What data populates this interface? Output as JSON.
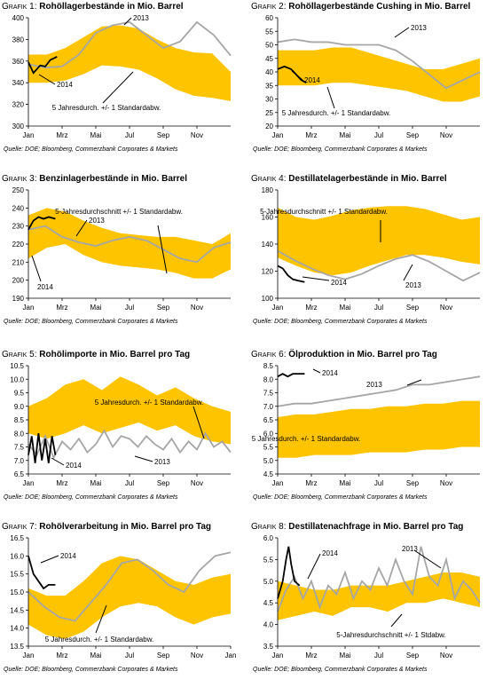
{
  "months": [
    "Jan",
    "Mrz",
    "Mai",
    "Jul",
    "Sep",
    "Nov"
  ],
  "source": "Quelle: DOE; Bloomberg, Commerzbank Corporates & Markets",
  "colors": {
    "band": "#ffc400",
    "line2013": "#a6a6a6",
    "line2014": "#000000"
  },
  "chart_data": [
    {
      "type": "line",
      "grafik": "Grafik 1:",
      "title": "Rohöllagerbestände in Mio. Barrel",
      "yticks": [
        "300",
        "320",
        "340",
        "360",
        "380",
        "400"
      ],
      "ylim": [
        300,
        400
      ],
      "annotations": [
        {
          "text": "2013"
        },
        {
          "text": "2014"
        },
        {
          "text": "5 Jahresdurch. +/- 1 Standardabw."
        }
      ],
      "band_upper": [
        366,
        366,
        372,
        382,
        392,
        393,
        390,
        380,
        372,
        368,
        367,
        350
      ],
      "band_lower": [
        340,
        340,
        342,
        348,
        356,
        355,
        352,
        344,
        334,
        328,
        326,
        323
      ],
      "series_2013": [
        357,
        354,
        355,
        366,
        386,
        393,
        396,
        384,
        372,
        378,
        396,
        384,
        365
      ],
      "series_2014": [
        {
          "x": 0.0,
          "y": 359
        },
        {
          "x": 0.3,
          "y": 349
        },
        {
          "x": 0.7,
          "y": 356
        },
        {
          "x": 1.0,
          "y": 355
        },
        {
          "x": 1.3,
          "y": 361
        },
        {
          "x": 1.7,
          "y": 364
        }
      ]
    },
    {
      "type": "line",
      "grafik": "Grafik 2:",
      "title": "Rohöllagerbestände Cushing in Mio. Barrel",
      "yticks": [
        "20",
        "25",
        "30",
        "35",
        "40",
        "45",
        "50",
        "55",
        "60"
      ],
      "ylim": [
        20,
        60
      ],
      "annotations": [
        {
          "text": "2013"
        },
        {
          "text": "2014"
        },
        {
          "text": "5 Jahresdurch. +/- 1 Standardabw."
        }
      ],
      "band_upper": [
        48,
        48,
        48,
        49,
        49,
        47,
        45,
        43,
        41,
        41,
        43,
        45
      ],
      "band_lower": [
        35,
        35,
        35,
        36,
        36,
        35,
        34,
        33,
        31,
        29,
        29,
        31
      ],
      "series_2013": [
        51,
        52,
        51,
        51,
        50,
        50,
        50,
        48,
        44,
        39,
        34,
        37,
        40
      ],
      "series_2014": [
        {
          "x": 0.0,
          "y": 41
        },
        {
          "x": 0.4,
          "y": 42
        },
        {
          "x": 0.8,
          "y": 41
        },
        {
          "x": 1.1,
          "y": 39
        },
        {
          "x": 1.4,
          "y": 37
        },
        {
          "x": 1.7,
          "y": 36
        }
      ]
    },
    {
      "type": "line",
      "grafik": "Grafik 3:",
      "title": "Benzinlagerbestände in Mio. Barrel",
      "yticks": [
        "190",
        "200",
        "210",
        "220",
        "230",
        "240",
        "250"
      ],
      "ylim": [
        190,
        250
      ],
      "annotations": [
        {
          "text": "2013"
        },
        {
          "text": "2014"
        },
        {
          "text": "5-Jahresdurchschnitt +/- 1 Standardabw."
        }
      ],
      "band_upper": [
        236,
        240,
        238,
        233,
        229,
        226,
        225,
        224,
        224,
        222,
        220,
        226
      ],
      "band_lower": [
        212,
        218,
        220,
        214,
        210,
        208,
        207,
        206,
        204,
        201,
        201,
        206
      ],
      "series_2013": [
        228,
        230,
        224,
        221,
        219,
        222,
        224,
        222,
        217,
        212,
        210,
        218,
        221
      ],
      "series_2014": [
        {
          "x": 0.0,
          "y": 228
        },
        {
          "x": 0.3,
          "y": 233
        },
        {
          "x": 0.6,
          "y": 235
        },
        {
          "x": 0.9,
          "y": 234
        },
        {
          "x": 1.2,
          "y": 235
        },
        {
          "x": 1.6,
          "y": 234
        }
      ]
    },
    {
      "type": "line",
      "grafik": "Grafik 4:",
      "title": "Destillatelagerbestände in Mio. Barrel",
      "yticks": [
        "100",
        "120",
        "140",
        "160",
        "180"
      ],
      "ylim": [
        100,
        180
      ],
      "annotations": [
        {
          "text": "5-Jahresdurchschnitt +/- 1 Standardabw."
        },
        {
          "text": "2014"
        },
        {
          "text": "2013"
        }
      ],
      "band_upper": [
        167,
        160,
        158,
        161,
        165,
        167,
        168,
        168,
        166,
        162,
        158,
        160
      ],
      "band_lower": [
        130,
        124,
        119,
        117,
        119,
        124,
        128,
        132,
        132,
        130,
        127,
        125
      ],
      "series_2013": [
        135,
        128,
        122,
        117,
        114,
        118,
        124,
        129,
        132,
        127,
        120,
        113,
        119
      ],
      "series_2014": [
        {
          "x": 0.0,
          "y": 124
        },
        {
          "x": 0.3,
          "y": 122
        },
        {
          "x": 0.6,
          "y": 117
        },
        {
          "x": 0.9,
          "y": 114
        },
        {
          "x": 1.2,
          "y": 113
        },
        {
          "x": 1.6,
          "y": 112
        }
      ]
    },
    {
      "type": "line",
      "grafik": "Grafik 5:",
      "title": "Rohölimporte in Mio. Barrel pro Tag",
      "yticks": [
        "6.5",
        "7.0",
        "7.5",
        "8.0",
        "8.5",
        "9.0",
        "9.5",
        "10.0",
        "10.5"
      ],
      "ylim": [
        6.5,
        10.5
      ],
      "annotations": [
        {
          "text": "5 Jahresdurch. +/- 1 Standardabw."
        },
        {
          "text": "2014"
        },
        {
          "text": "2013"
        }
      ],
      "band_upper": [
        9.0,
        9.3,
        9.8,
        10.0,
        9.6,
        10.1,
        9.8,
        9.4,
        9.7,
        9.3,
        9.0,
        8.8
      ],
      "band_lower": [
        8.0,
        7.8,
        8.0,
        8.3,
        8.0,
        8.2,
        8.4,
        8.1,
        8.3,
        7.9,
        7.7,
        7.6
      ],
      "series_2013": [
        7.6,
        7.2,
        7.9,
        7.1,
        7.7,
        7.4,
        7.8,
        7.3,
        7.6,
        8.1,
        7.5,
        7.9,
        7.8,
        7.5,
        7.9,
        7.6,
        7.4,
        7.8,
        7.3,
        7.7,
        7.4,
        8.0,
        7.5,
        7.7,
        7.3
      ],
      "series_2014": [
        {
          "x": 0.0,
          "y": 7.2
        },
        {
          "x": 0.2,
          "y": 7.9
        },
        {
          "x": 0.4,
          "y": 6.9
        },
        {
          "x": 0.6,
          "y": 8.0
        },
        {
          "x": 0.8,
          "y": 7.0
        },
        {
          "x": 1.0,
          "y": 7.8
        },
        {
          "x": 1.2,
          "y": 6.9
        },
        {
          "x": 1.4,
          "y": 7.9
        },
        {
          "x": 1.6,
          "y": 7.2
        }
      ]
    },
    {
      "type": "line",
      "grafik": "Grafik 6:",
      "title": "Ölproduktion in Mio. Barrel pro Tag",
      "yticks": [
        "4.5",
        "5.0",
        "5.5",
        "6.0",
        "6.5",
        "7.0",
        "7.5",
        "8.0",
        "8.5"
      ],
      "ylim": [
        4.5,
        8.5
      ],
      "annotations": [
        {
          "text": "2014"
        },
        {
          "text": "2013"
        },
        {
          "text": "5 Jahresdurch. +/- 1 Standardabw."
        }
      ],
      "band_upper": [
        6.6,
        6.7,
        6.7,
        6.8,
        6.9,
        6.9,
        7.0,
        7.0,
        7.1,
        7.1,
        7.2,
        7.2
      ],
      "band_lower": [
        5.1,
        5.1,
        5.2,
        5.2,
        5.2,
        5.3,
        5.3,
        5.3,
        5.4,
        5.4,
        5.5,
        5.5
      ],
      "series_2013": [
        7.0,
        7.1,
        7.1,
        7.2,
        7.3,
        7.4,
        7.5,
        7.6,
        7.8,
        7.8,
        7.9,
        8.0,
        8.1
      ],
      "series_2014": [
        {
          "x": 0.0,
          "y": 8.1
        },
        {
          "x": 0.3,
          "y": 8.2
        },
        {
          "x": 0.6,
          "y": 8.1
        },
        {
          "x": 0.9,
          "y": 8.2
        },
        {
          "x": 1.2,
          "y": 8.2
        },
        {
          "x": 1.6,
          "y": 8.2
        }
      ]
    },
    {
      "type": "line",
      "grafik": "Grafik 7:",
      "title": "Rohölverarbeitung in Mio. Barrel pro Tag",
      "yticks": [
        "13.5",
        "14.0",
        "14.5",
        "15.0",
        "15.5",
        "16.0",
        "16.5"
      ],
      "ylim": [
        13.5,
        16.5
      ],
      "annotations": [
        {
          "text": "2014"
        },
        {
          "text": "5 Jahresdurch. +/- 1 Standardabw."
        }
      ],
      "band_upper": [
        15.1,
        14.9,
        14.9,
        15.3,
        15.8,
        16.0,
        15.9,
        15.6,
        15.3,
        15.2,
        15.4,
        15.5
      ],
      "band_lower": [
        14.1,
        13.8,
        13.7,
        13.9,
        14.3,
        14.6,
        14.7,
        14.6,
        14.3,
        14.1,
        14.3,
        14.4
      ],
      "series_2013": [
        15.0,
        14.6,
        14.3,
        14.2,
        14.7,
        15.2,
        15.8,
        15.9,
        15.6,
        15.2,
        15.0,
        15.6,
        16.0,
        16.1
      ],
      "series_2014": [
        {
          "x": 0.0,
          "y": 16.0
        },
        {
          "x": 0.3,
          "y": 15.5
        },
        {
          "x": 0.6,
          "y": 15.3
        },
        {
          "x": 0.9,
          "y": 15.1
        },
        {
          "x": 1.2,
          "y": 15.2
        },
        {
          "x": 1.6,
          "y": 15.2
        }
      ],
      "extra_tick": "Jan"
    },
    {
      "type": "line",
      "grafik": "Grafik 8:",
      "title": "Destillatenachfrage in Mio. Barrel pro Tag",
      "yticks": [
        "3.5",
        "4.0",
        "4.5",
        "5.0",
        "5.5",
        "6.0"
      ],
      "ylim": [
        3.5,
        6.0
      ],
      "annotations": [
        {
          "text": "2014"
        },
        {
          "text": "2013"
        },
        {
          "text": "5-Jahresdurchschnitt +/- 1 Stdabw."
        }
      ],
      "band_upper": [
        5.0,
        4.9,
        4.8,
        4.8,
        4.9,
        4.9,
        4.9,
        5.0,
        5.1,
        5.2,
        5.2,
        5.1
      ],
      "band_lower": [
        4.1,
        4.2,
        4.3,
        4.2,
        4.4,
        4.4,
        4.3,
        4.5,
        4.5,
        4.6,
        4.5,
        4.4
      ],
      "series_2013": [
        4.3,
        4.8,
        5.1,
        4.6,
        5.0,
        4.4,
        4.9,
        4.7,
        5.2,
        4.6,
        5.0,
        4.8,
        5.3,
        4.9,
        5.5,
        5.0,
        4.7,
        5.8,
        5.1,
        4.9,
        5.5,
        4.6,
        5.0,
        4.8,
        4.5
      ],
      "series_2014": [
        {
          "x": 0.0,
          "y": 4.6
        },
        {
          "x": 0.3,
          "y": 5.0
        },
        {
          "x": 0.5,
          "y": 5.5
        },
        {
          "x": 0.65,
          "y": 5.8
        },
        {
          "x": 0.8,
          "y": 5.4
        },
        {
          "x": 1.0,
          "y": 5.0
        },
        {
          "x": 1.3,
          "y": 4.9
        }
      ]
    }
  ]
}
